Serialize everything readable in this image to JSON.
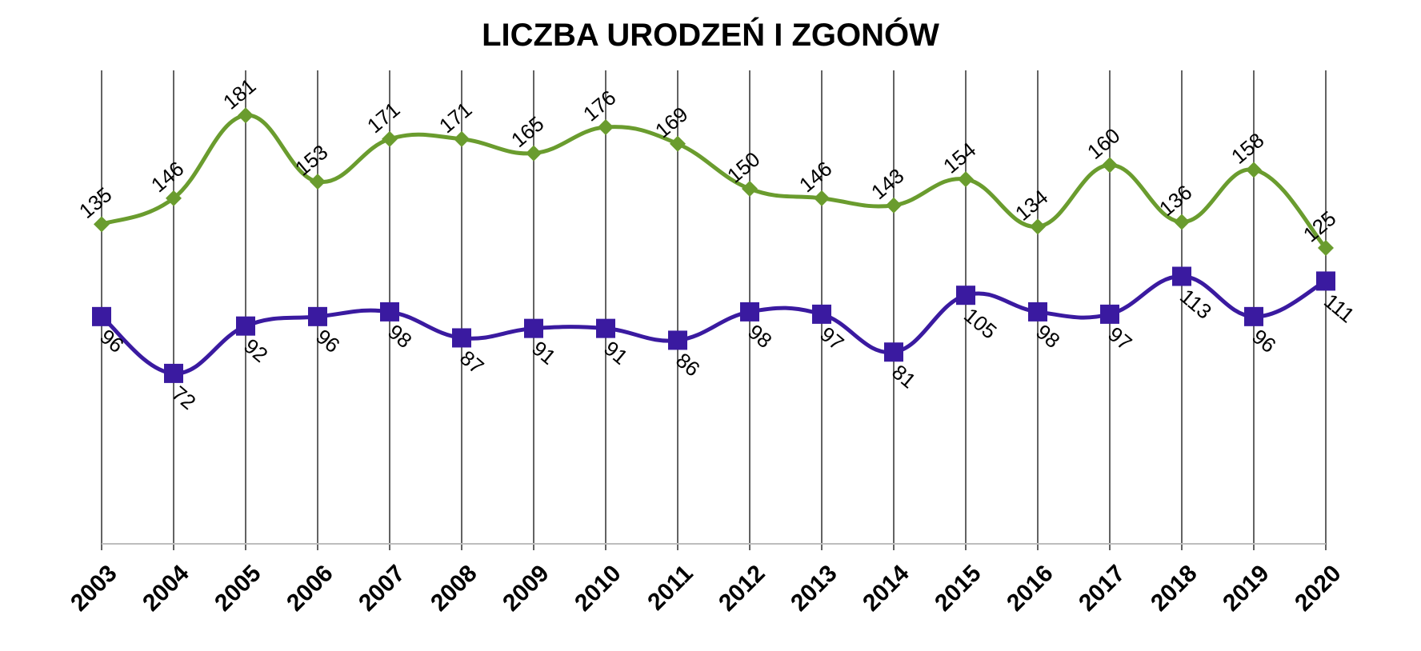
{
  "chart_data": {
    "type": "line",
    "title": "LICZBA URODZEŃ I ZGONÓW",
    "xlabel": "",
    "ylabel": "",
    "x": [
      "2003",
      "2004",
      "2005",
      "2006",
      "2007",
      "2008",
      "2009",
      "2010",
      "2011",
      "2012",
      "2013",
      "2014",
      "2015",
      "2016",
      "2017",
      "2018",
      "2019",
      "2020"
    ],
    "series": [
      {
        "values": [
          135,
          146,
          181,
          153,
          171,
          171,
          165,
          176,
          169,
          150,
          146,
          143,
          154,
          134,
          160,
          136,
          158,
          125
        ],
        "color": "#6a9c2e",
        "marker": "diamond",
        "label_position": "above"
      },
      {
        "values": [
          96,
          72,
          92,
          96,
          98,
          87,
          91,
          91,
          86,
          98,
          97,
          81,
          105,
          98,
          97,
          113,
          96,
          111
        ],
        "color": "#3a1aa0",
        "marker": "square",
        "label_position": "below"
      }
    ],
    "ylim": [
      0,
      200
    ],
    "grid": "vertical",
    "legend": "none"
  }
}
